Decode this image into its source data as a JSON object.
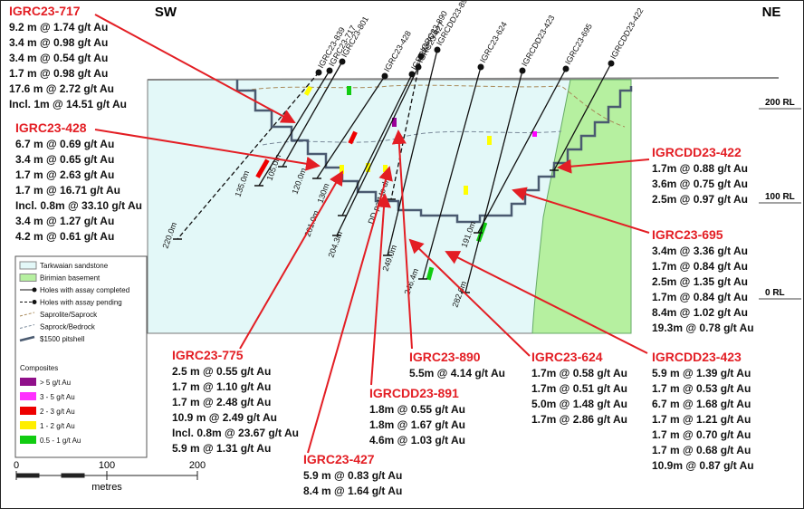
{
  "orientation": {
    "left": "SW",
    "right": "NE"
  },
  "rl_labels": [
    "200 RL",
    "100 RL",
    "0 RL"
  ],
  "hole_labels": [
    "IGRC23-839",
    "IGRC23-717",
    "IGRC23-801",
    "IGRC23-428",
    "IGRC23-775",
    "IGRC23-427",
    "IGRC23-890",
    "IGRCDD23-891",
    "IGRC23-624",
    "IGRCDD23-423",
    "IGRC23-695",
    "IGRCDD23-422"
  ],
  "depth_labels": [
    "220.0m",
    "135.0m",
    "105.0m",
    "120.0m",
    "130m",
    "201.0m",
    "204.3m",
    "DD part to drill",
    "249.0m",
    "246.4m",
    "191.0m",
    "282.6m"
  ],
  "callouts": [
    {
      "title": "IGRC23-717",
      "lines": [
        "9.2 m @ 1.74 g/t Au",
        "3.4 m @ 0.98 g/t Au",
        "3.4 m @ 0.54 g/t Au",
        "1.7 m @ 0.98 g/t Au",
        "17.6 m @ 2.72 g/t Au",
        "Incl. 1m @ 14.51 g/t Au"
      ]
    },
    {
      "title": "IGRC23-428",
      "lines": [
        "6.7 m @ 0.69 g/t Au",
        "3.4 m @ 0.65 g/t Au",
        "1.7 m @ 2.63 g/t Au",
        "1.7 m @ 16.71 g/t Au",
        "Incl. 0.8m @ 33.10 g/t Au",
        "3.4 m @ 1.27 g/t Au",
        "4.2 m @ 0.61 g/t Au"
      ]
    },
    {
      "title": "IGRC23-775",
      "lines": [
        "2.5 m @ 0.55 g/t Au",
        "1.7 m @ 1.10 g/t Au",
        "1.7 m @ 2.48 g/t Au",
        "10.9 m @ 2.49 g/t Au",
        "Incl. 0.8m @ 23.67 g/t Au",
        "5.9 m @ 1.31 g/t Au"
      ]
    },
    {
      "title": "IGRC23-427",
      "lines": [
        "5.9 m @ 0.83 g/t Au",
        "8.4 m @ 1.64 g/t Au"
      ]
    },
    {
      "title": "IGRC23-890",
      "lines": [
        "5.5m @ 4.14 g/t Au"
      ]
    },
    {
      "title": "IGRCDD23-891",
      "lines": [
        "1.8m @ 0.55 g/t Au",
        "1.8m @ 1.67 g/t Au",
        "4.6m @ 1.03 g/t Au"
      ]
    },
    {
      "title": "IGRC23-624",
      "lines": [
        "1.7m @ 0.58 g/t Au",
        "1.7m @ 0.51 g/t Au",
        "5.0m @ 1.48 g/t Au",
        "1.7m @ 2.86 g/t Au"
      ]
    },
    {
      "title": "IGRCDD23-423",
      "lines": [
        "5.9 m @ 1.39 g/t Au",
        "1.7 m @ 0.53 g/t Au",
        "6.7 m @ 1.68 g/t Au",
        "1.7 m @ 1.21 g/t Au",
        "1.7 m @ 0.70 g/t Au",
        "1.7 m @ 0.68 g/t Au",
        "10.9m @ 0.87 g/t Au"
      ]
    },
    {
      "title": "IGRCDD23-422",
      "lines": [
        "1.7m @ 0.88 g/t Au",
        "3.6m @ 0.75 g/t Au",
        "2.5m @ 0.97 g/t Au"
      ]
    },
    {
      "title": "IGRC23-695",
      "lines": [
        "3.4m @ 3.36 g/t Au",
        "1.7m @ 0.84 g/t Au",
        "2.5m @ 1.35 g/t Au",
        "1.7m @ 0.84 g/t Au",
        "8.4m @ 1.02 g/t Au",
        "19.3m @ 0.78 g/t Au"
      ]
    }
  ],
  "legend": {
    "items": [
      "Tarkwaian sandstone",
      "Birimian basement",
      "Holes with assay completed",
      "Holes with assay pending",
      "Saprolite/Saprock",
      "Saprock/Bedrock",
      "$1500 pitshell"
    ],
    "composites_title": "Composites",
    "composites": [
      "> 5 g/t Au",
      "3 - 5 g/t Au",
      "2 - 3 g/t Au",
      "1 - 2 g/t Au",
      "0.5 - 1 g/t Au"
    ]
  },
  "scale": {
    "ticks": [
      "0",
      "100",
      "200"
    ],
    "unit": "metres"
  }
}
